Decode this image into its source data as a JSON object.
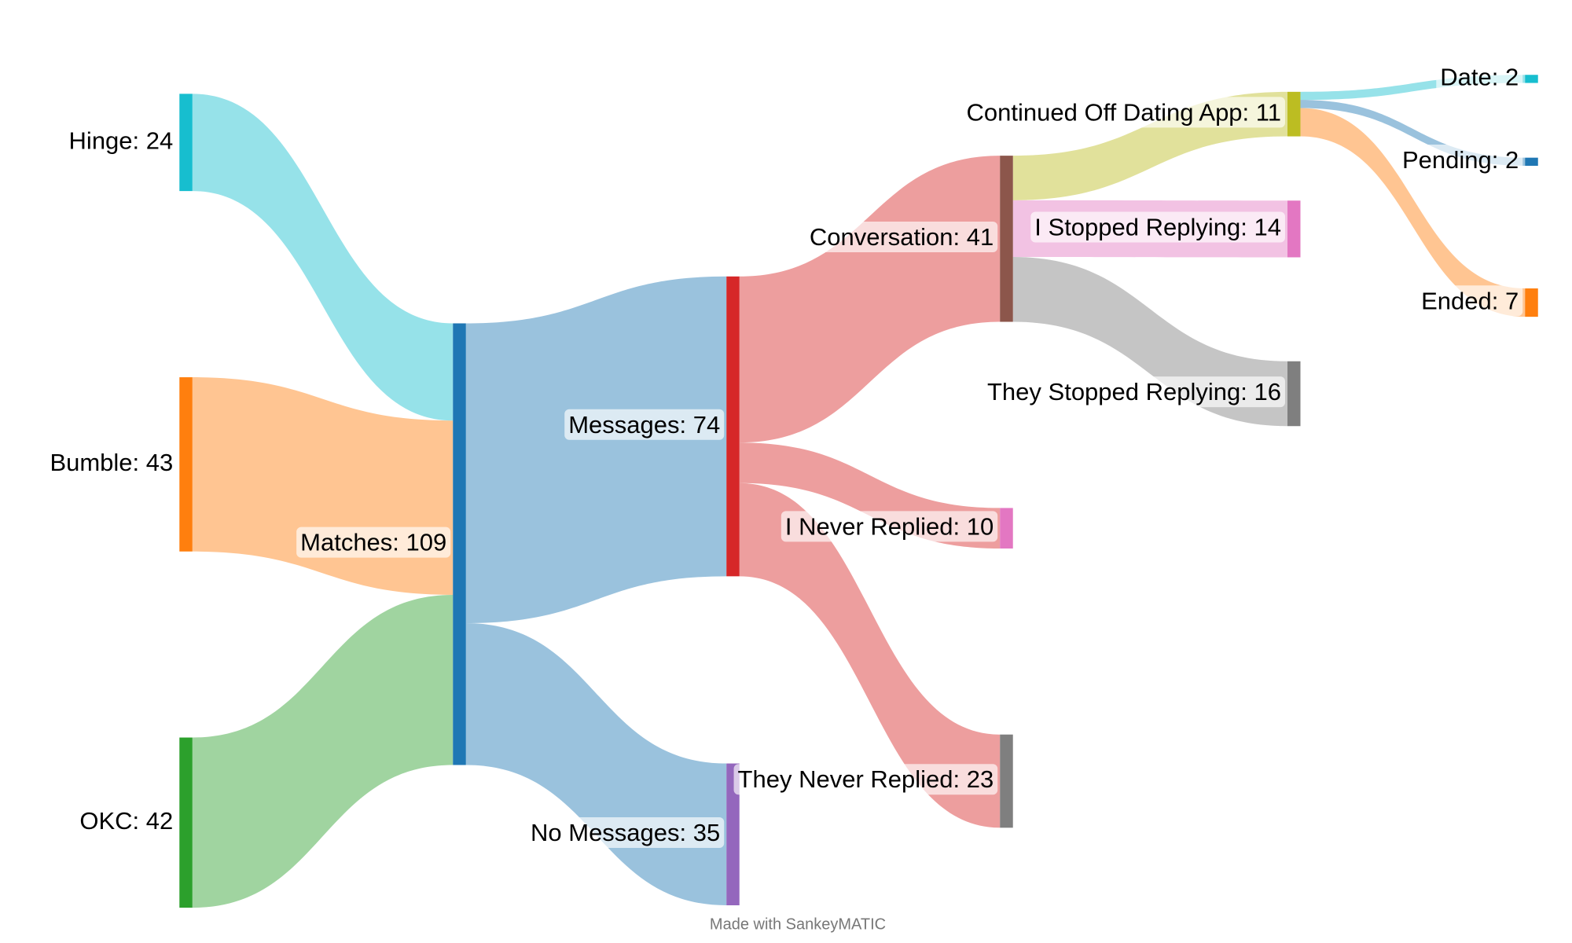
{
  "chart_data": {
    "type": "sankey",
    "footer": "Made with SankeyMATIC",
    "nodes": [
      {
        "label": "Hinge: 24",
        "value": 24,
        "color": "#17becf"
      },
      {
        "label": "Bumble: 43",
        "value": 43,
        "color": "#ff7f0e"
      },
      {
        "label": "OKC: 42",
        "value": 42,
        "color": "#2ca02c"
      },
      {
        "label": "Matches: 109",
        "value": 109,
        "color": "#1f77b4"
      },
      {
        "label": "Messages: 74",
        "value": 74,
        "color": "#d62728"
      },
      {
        "label": "No Messages: 35",
        "value": 35,
        "color": "#9467bd"
      },
      {
        "label": "Conversation: 41",
        "value": 41,
        "color": "#8c564b"
      },
      {
        "label": "I Never Replied: 10",
        "value": 10,
        "color": "#e377c2"
      },
      {
        "label": "They Never Replied: 23",
        "value": 23,
        "color": "#7f7f7f"
      },
      {
        "label": "Continued Off Dating App: 11",
        "value": 11,
        "color": "#bcbd22"
      },
      {
        "label": "I Stopped Replying: 14",
        "value": 14,
        "color": "#e377c2"
      },
      {
        "label": "They Stopped Replying: 16",
        "value": 16,
        "color": "#7f7f7f"
      },
      {
        "label": "Date: 2",
        "value": 2,
        "color": "#17becf"
      },
      {
        "label": "Pending: 2",
        "value": 2,
        "color": "#1f77b4"
      },
      {
        "label": "Ended: 7",
        "value": 7,
        "color": "#ff7f0e"
      }
    ],
    "links": [
      {
        "source": 0,
        "target": 3,
        "value": 24,
        "color": "#17becf"
      },
      {
        "source": 1,
        "target": 3,
        "value": 43,
        "color": "#ff7f0e"
      },
      {
        "source": 2,
        "target": 3,
        "value": 42,
        "color": "#2ca02c"
      },
      {
        "source": 3,
        "target": 4,
        "value": 74,
        "color": "#1f77b4"
      },
      {
        "source": 3,
        "target": 5,
        "value": 35,
        "color": "#1f77b4"
      },
      {
        "source": 4,
        "target": 6,
        "value": 41,
        "color": "#d62728"
      },
      {
        "source": 4,
        "target": 7,
        "value": 10,
        "color": "#d62728"
      },
      {
        "source": 4,
        "target": 8,
        "value": 23,
        "color": "#d62728"
      },
      {
        "source": 6,
        "target": 9,
        "value": 11,
        "color": "#bcbd22"
      },
      {
        "source": 6,
        "target": 10,
        "value": 14,
        "color": "#e377c2"
      },
      {
        "source": 6,
        "target": 11,
        "value": 16,
        "color": "#7f7f7f"
      },
      {
        "source": 9,
        "target": 12,
        "value": 2,
        "color": "#17becf"
      },
      {
        "source": 9,
        "target": 13,
        "value": 2,
        "color": "#1f77b4"
      },
      {
        "source": 9,
        "target": 14,
        "value": 7,
        "color": "#ff7f0e"
      }
    ]
  }
}
